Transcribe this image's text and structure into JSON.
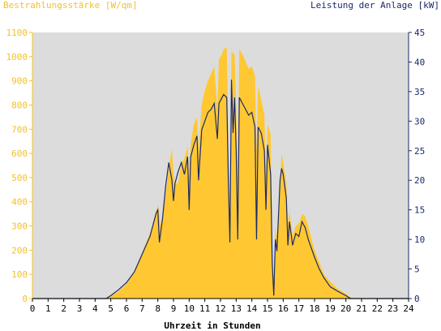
{
  "chart_data": {
    "type": "area",
    "left_axis_label": "Bestrahlungsstärke [W/qm]",
    "right_axis_label": "Leistung der Anlage [kW]",
    "xlabel": "Uhrzeit in Stunden",
    "xlim": [
      0,
      24
    ],
    "ylim_left": [
      0,
      1100
    ],
    "ylim_right": [
      0,
      45
    ],
    "x_ticks": [
      "0",
      "1",
      "2",
      "3",
      "4",
      "5",
      "6",
      "7",
      "8",
      "9",
      "10",
      "11",
      "12",
      "13",
      "14",
      "15",
      "16",
      "17",
      "18",
      "19",
      "20",
      "21",
      "22",
      "23",
      "24"
    ],
    "y_left_ticks": [
      "0",
      "100",
      "200",
      "300",
      "400",
      "500",
      "600",
      "700",
      "800",
      "900",
      "1000",
      "1100"
    ],
    "y_right_ticks": [
      "0",
      "5",
      "10",
      "15",
      "20",
      "25",
      "30",
      "35",
      "40",
      "45"
    ],
    "grid": false,
    "colors": {
      "irradiance": "#ffc832",
      "power": "#1a2a6a",
      "plot_background": "#dcdcdc",
      "left_axis": "#f0c030",
      "right_axis": "#1a2a6a"
    },
    "series": [
      {
        "axis": "left",
        "style": "area",
        "points": [
          [
            0,
            0
          ],
          [
            4.6,
            0
          ],
          [
            5.0,
            10
          ],
          [
            5.5,
            30
          ],
          [
            6.0,
            60
          ],
          [
            6.5,
            110
          ],
          [
            7.0,
            190
          ],
          [
            7.5,
            270
          ],
          [
            7.9,
            360
          ],
          [
            8.0,
            390
          ],
          [
            8.2,
            300
          ],
          [
            8.5,
            430
          ],
          [
            8.7,
            540
          ],
          [
            8.9,
            620
          ],
          [
            9.0,
            520
          ],
          [
            9.1,
            470
          ],
          [
            9.3,
            480
          ],
          [
            9.5,
            560
          ],
          [
            9.7,
            580
          ],
          [
            9.9,
            630
          ],
          [
            10.0,
            500
          ],
          [
            10.1,
            640
          ],
          [
            10.3,
            720
          ],
          [
            10.5,
            750
          ],
          [
            10.6,
            620
          ],
          [
            10.8,
            800
          ],
          [
            11.0,
            860
          ],
          [
            11.2,
            900
          ],
          [
            11.4,
            930
          ],
          [
            11.6,
            960
          ],
          [
            11.8,
            780
          ],
          [
            11.9,
            990
          ],
          [
            12.1,
            1010
          ],
          [
            12.2,
            1030
          ],
          [
            12.4,
            1040
          ],
          [
            12.5,
            600
          ],
          [
            12.6,
            300
          ],
          [
            12.7,
            1020
          ],
          [
            12.9,
            1010
          ],
          [
            13.0,
            800
          ],
          [
            13.1,
            500
          ],
          [
            13.2,
            1030
          ],
          [
            13.4,
            1010
          ],
          [
            13.6,
            980
          ],
          [
            13.8,
            950
          ],
          [
            14.0,
            960
          ],
          [
            14.2,
            920
          ],
          [
            14.3,
            600
          ],
          [
            14.4,
            880
          ],
          [
            14.6,
            820
          ],
          [
            14.8,
            760
          ],
          [
            14.9,
            500
          ],
          [
            15.0,
            720
          ],
          [
            15.2,
            680
          ],
          [
            15.3,
            200
          ],
          [
            15.4,
            40
          ],
          [
            15.5,
            300
          ],
          [
            15.6,
            250
          ],
          [
            15.8,
            480
          ],
          [
            15.9,
            600
          ],
          [
            16.0,
            560
          ],
          [
            16.2,
            480
          ],
          [
            16.3,
            310
          ],
          [
            16.4,
            360
          ],
          [
            16.6,
            260
          ],
          [
            16.8,
            300
          ],
          [
            17.0,
            310
          ],
          [
            17.2,
            350
          ],
          [
            17.4,
            340
          ],
          [
            17.6,
            300
          ],
          [
            17.8,
            250
          ],
          [
            18.0,
            200
          ],
          [
            18.3,
            150
          ],
          [
            18.6,
            100
          ],
          [
            19.0,
            70
          ],
          [
            19.5,
            40
          ],
          [
            20.0,
            20
          ],
          [
            20.3,
            5
          ],
          [
            20.5,
            0
          ],
          [
            24,
            0
          ]
        ]
      },
      {
        "axis": "right",
        "style": "line",
        "points": [
          [
            0,
            0
          ],
          [
            4.7,
            0
          ],
          [
            5.0,
            0.5
          ],
          [
            5.5,
            1.5
          ],
          [
            6.0,
            2.7
          ],
          [
            6.5,
            4.5
          ],
          [
            7.0,
            7.5
          ],
          [
            7.5,
            10.5
          ],
          [
            7.9,
            14.5
          ],
          [
            8.0,
            15
          ],
          [
            8.1,
            9.5
          ],
          [
            8.3,
            13.5
          ],
          [
            8.5,
            19
          ],
          [
            8.7,
            23
          ],
          [
            8.9,
            20
          ],
          [
            9.0,
            16.5
          ],
          [
            9.1,
            19.5
          ],
          [
            9.3,
            21.5
          ],
          [
            9.5,
            23
          ],
          [
            9.7,
            21
          ],
          [
            9.9,
            24
          ],
          [
            10.0,
            15
          ],
          [
            10.1,
            24
          ],
          [
            10.3,
            26
          ],
          [
            10.5,
            27.5
          ],
          [
            10.6,
            20
          ],
          [
            10.8,
            28.5
          ],
          [
            11.0,
            30
          ],
          [
            11.2,
            31.5
          ],
          [
            11.4,
            32
          ],
          [
            11.6,
            33
          ],
          [
            11.8,
            27
          ],
          [
            11.9,
            33
          ],
          [
            12.1,
            34
          ],
          [
            12.2,
            34.5
          ],
          [
            12.4,
            34
          ],
          [
            12.5,
            20
          ],
          [
            12.6,
            9.5
          ],
          [
            12.7,
            37
          ],
          [
            12.8,
            28
          ],
          [
            12.9,
            34
          ],
          [
            13.0,
            25
          ],
          [
            13.1,
            10
          ],
          [
            13.2,
            34
          ],
          [
            13.4,
            33
          ],
          [
            13.6,
            32
          ],
          [
            13.8,
            31
          ],
          [
            14.0,
            31.5
          ],
          [
            14.2,
            29
          ],
          [
            14.3,
            10
          ],
          [
            14.4,
            29
          ],
          [
            14.6,
            28
          ],
          [
            14.8,
            25
          ],
          [
            14.9,
            15
          ],
          [
            15.0,
            26
          ],
          [
            15.2,
            21
          ],
          [
            15.3,
            6
          ],
          [
            15.4,
            0.5
          ],
          [
            15.5,
            10
          ],
          [
            15.6,
            8
          ],
          [
            15.8,
            20
          ],
          [
            15.9,
            22
          ],
          [
            16.0,
            21
          ],
          [
            16.2,
            17
          ],
          [
            16.3,
            9
          ],
          [
            16.4,
            13
          ],
          [
            16.6,
            9
          ],
          [
            16.8,
            11
          ],
          [
            17.0,
            10.5
          ],
          [
            17.2,
            13
          ],
          [
            17.4,
            12
          ],
          [
            17.6,
            10
          ],
          [
            17.8,
            8.5
          ],
          [
            18.0,
            7
          ],
          [
            18.3,
            5
          ],
          [
            18.6,
            3.5
          ],
          [
            19.0,
            2
          ],
          [
            19.5,
            1.2
          ],
          [
            20.0,
            0.5
          ],
          [
            20.3,
            0
          ],
          [
            24,
            0
          ]
        ]
      }
    ]
  }
}
